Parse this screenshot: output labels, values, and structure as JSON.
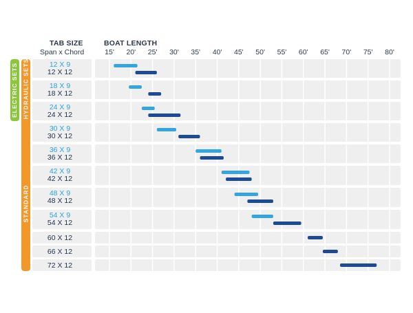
{
  "header": {
    "tab_size": "TAB SIZE",
    "span_chord": "Span x Chord",
    "boat_length": "BOAT LENGTH"
  },
  "groups": {
    "electric": "ELECTRIC SETS",
    "standard": "STANDARD",
    "hydraulic": "HYDRAULIC SETS"
  },
  "colors": {
    "light_blue": "#35a6dd",
    "dark_blue": "#1c4a93",
    "orange": "#f4972a",
    "green": "#8cc63f",
    "row_bg": "#efeff0"
  },
  "chart_data": {
    "type": "bar",
    "orientation": "horizontal-range",
    "x_ticks": [
      "15'",
      "20'",
      "25'",
      "30'",
      "35'",
      "40'",
      "45'",
      "50'",
      "55'",
      "60'",
      "65'",
      "70'",
      "75'",
      "80'"
    ],
    "xlim": [
      15,
      80
    ],
    "xlabel": "BOAT LENGTH",
    "ylabel": "TAB SIZE",
    "rows": [
      {
        "label9": "12 X 9",
        "range9": [
          16,
          21.5
        ],
        "label12": "12 X 12",
        "range12": [
          21,
          26
        ]
      },
      {
        "label9": "18 X 9",
        "range9": [
          19.5,
          22.5
        ],
        "label12": "18 X 12",
        "range12": [
          24,
          27
        ]
      },
      {
        "label9": "24 X 9",
        "range9": [
          22.5,
          25.5
        ],
        "label12": "24 X 12",
        "range12": [
          24,
          31.5
        ]
      },
      {
        "label9": "30 X 9",
        "range9": [
          26,
          30.5
        ],
        "label12": "30 X 12",
        "range12": [
          31,
          36
        ]
      },
      {
        "label9": "36 X 9",
        "range9": [
          35,
          41
        ],
        "label12": "36 X 12",
        "range12": [
          36,
          41.5
        ]
      },
      {
        "label9": "42 X 9",
        "range9": [
          41,
          47.5
        ],
        "label12": "42 X 12",
        "range12": [
          42,
          48
        ]
      },
      {
        "label9": "48 X 9",
        "range9": [
          44,
          49.5
        ],
        "label12": "48 X 12",
        "range12": [
          47,
          53
        ]
      },
      {
        "label9": "54 X 9",
        "range9": [
          48,
          53
        ],
        "label12": "54 X 12",
        "range12": [
          53,
          59.5
        ]
      },
      {
        "label12": "60 X 12",
        "range12": [
          61,
          64.5
        ]
      },
      {
        "label12": "66 X 12",
        "range12": [
          64.5,
          68
        ]
      },
      {
        "label12": "72 X 12",
        "range12": [
          68.5,
          77
        ]
      }
    ],
    "legend": "none",
    "grid": true
  }
}
